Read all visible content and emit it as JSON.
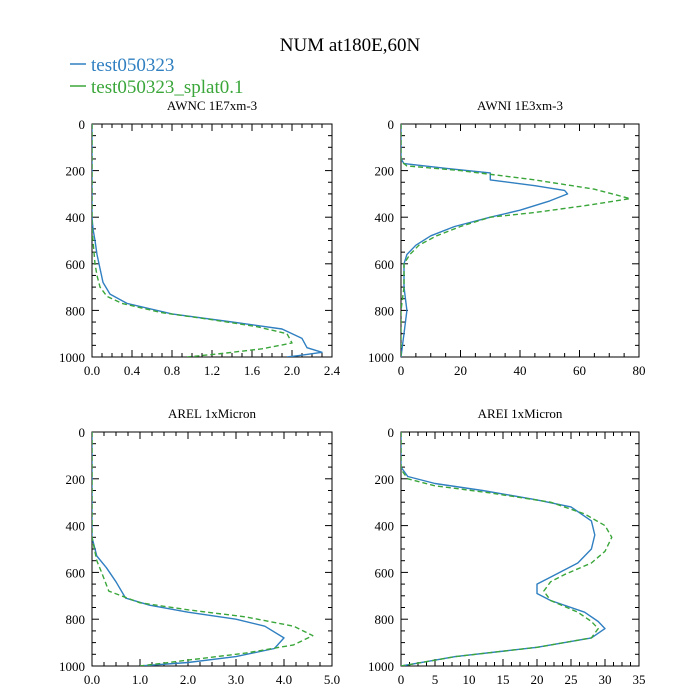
{
  "title": "NUM at180E,60N",
  "legend": [
    {
      "label": "test050323",
      "color": "#2f7fc1",
      "dash": "solid"
    },
    {
      "label": "test050323_splat0.1",
      "color": "#3aa63a",
      "dash": "dashed"
    }
  ],
  "chart_data": [
    {
      "type": "line",
      "title": "AWNC  1E7xm-3",
      "xlim": [
        0,
        2.4
      ],
      "ylim": [
        1000,
        0
      ],
      "xticks": [
        0,
        0.4,
        0.8,
        1.2,
        1.6,
        2.0,
        2.4
      ],
      "xticklabels": [
        "0.0",
        "0.4",
        "0.8",
        "1.2",
        "1.6",
        "2.0",
        "2.4"
      ],
      "yticks": [
        0,
        200,
        400,
        600,
        800,
        1000
      ],
      "yticklabels": [
        "0",
        "200",
        "400",
        "600",
        "800",
        "1000"
      ],
      "series": [
        {
          "name": "test050323",
          "points": [
            [
              0,
              0
            ],
            [
              0,
              400
            ],
            [
              0.01,
              450
            ],
            [
              0.03,
              500
            ],
            [
              0.05,
              560
            ],
            [
              0.08,
              620
            ],
            [
              0.11,
              680
            ],
            [
              0.18,
              730
            ],
            [
              0.35,
              770
            ],
            [
              0.8,
              815
            ],
            [
              1.4,
              850
            ],
            [
              1.9,
              880
            ],
            [
              2.1,
              920
            ],
            [
              2.15,
              960
            ],
            [
              2.3,
              980
            ],
            [
              2.05,
              995
            ],
            [
              1.95,
              1000
            ]
          ]
        },
        {
          "name": "test050323_splat0.1",
          "points": [
            [
              0,
              0
            ],
            [
              0,
              450
            ],
            [
              0.01,
              500
            ],
            [
              0.02,
              550
            ],
            [
              0.03,
              600
            ],
            [
              0.05,
              650
            ],
            [
              0.08,
              700
            ],
            [
              0.15,
              740
            ],
            [
              0.3,
              770
            ],
            [
              0.7,
              810
            ],
            [
              1.2,
              840
            ],
            [
              1.65,
              870
            ],
            [
              1.95,
              900
            ],
            [
              2.0,
              940
            ],
            [
              1.7,
              965
            ],
            [
              1.3,
              985
            ],
            [
              0.95,
              1000
            ]
          ]
        }
      ]
    },
    {
      "type": "line",
      "title": "AWNI  1E3xm-3",
      "xlim": [
        0,
        80
      ],
      "ylim": [
        1000,
        0
      ],
      "xticks": [
        0,
        20,
        40,
        60,
        80
      ],
      "xticklabels": [
        "0",
        "20",
        "40",
        "60",
        "80"
      ],
      "yticks": [
        0,
        200,
        400,
        600,
        800,
        1000
      ],
      "yticklabels": [
        "0",
        "200",
        "400",
        "600",
        "800",
        "1000"
      ],
      "series": [
        {
          "name": "test050323",
          "points": [
            [
              0,
              0
            ],
            [
              0,
              150
            ],
            [
              1,
              170
            ],
            [
              15,
              190
            ],
            [
              30,
              210
            ],
            [
              30,
              240
            ],
            [
              45,
              265
            ],
            [
              55,
              285
            ],
            [
              56,
              300
            ],
            [
              50,
              330
            ],
            [
              40,
              370
            ],
            [
              30,
              400
            ],
            [
              18,
              440
            ],
            [
              10,
              480
            ],
            [
              5,
              520
            ],
            [
              2,
              560
            ],
            [
              1,
              600
            ],
            [
              1,
              700
            ],
            [
              2,
              800
            ],
            [
              1,
              900
            ],
            [
              0,
              1000
            ]
          ]
        },
        {
          "name": "test050323_splat0.1",
          "points": [
            [
              0,
              0
            ],
            [
              0,
              160
            ],
            [
              2,
              180
            ],
            [
              20,
              200
            ],
            [
              45,
              240
            ],
            [
              65,
              280
            ],
            [
              77,
              320
            ],
            [
              62,
              350
            ],
            [
              45,
              380
            ],
            [
              30,
              400
            ],
            [
              20,
              440
            ],
            [
              12,
              480
            ],
            [
              6,
              520
            ],
            [
              3,
              560
            ],
            [
              1,
              600
            ],
            [
              1,
              700
            ],
            [
              0,
              800
            ],
            [
              0,
              900
            ],
            [
              0,
              1000
            ]
          ]
        }
      ]
    },
    {
      "type": "line",
      "title": "AREL  1xMicron",
      "xlim": [
        0,
        5.0
      ],
      "ylim": [
        1000,
        0
      ],
      "xticks": [
        0,
        1,
        2,
        3,
        4,
        5
      ],
      "xticklabels": [
        "0.0",
        "1.0",
        "2.0",
        "3.0",
        "4.0",
        "5.0"
      ],
      "yticks": [
        0,
        200,
        400,
        600,
        800,
        1000
      ],
      "yticklabels": [
        "0",
        "200",
        "400",
        "600",
        "800",
        "1000"
      ],
      "series": [
        {
          "name": "test050323",
          "points": [
            [
              0,
              0
            ],
            [
              0,
              450
            ],
            [
              0.1,
              530
            ],
            [
              0.3,
              580
            ],
            [
              0.5,
              640
            ],
            [
              0.7,
              710
            ],
            [
              1.2,
              740
            ],
            [
              2.0,
              770
            ],
            [
              3.0,
              800
            ],
            [
              3.6,
              830
            ],
            [
              4.0,
              880
            ],
            [
              3.8,
              925
            ],
            [
              3.0,
              960
            ],
            [
              2.0,
              985
            ],
            [
              1.0,
              1000
            ]
          ]
        },
        {
          "name": "test050323_splat0.1",
          "points": [
            [
              0,
              0
            ],
            [
              0,
              450
            ],
            [
              0.05,
              500
            ],
            [
              0.1,
              550
            ],
            [
              0.2,
              600
            ],
            [
              0.35,
              680
            ],
            [
              1.0,
              730
            ],
            [
              2.0,
              760
            ],
            [
              3.2,
              790
            ],
            [
              4.2,
              830
            ],
            [
              4.6,
              870
            ],
            [
              4.2,
              910
            ],
            [
              3.2,
              945
            ],
            [
              2.0,
              975
            ],
            [
              1.0,
              1000
            ]
          ]
        }
      ]
    },
    {
      "type": "line",
      "title": "AREI  1xMicron",
      "xlim": [
        0,
        35
      ],
      "ylim": [
        1000,
        0
      ],
      "xticks": [
        0,
        5,
        10,
        15,
        20,
        25,
        30,
        35
      ],
      "xticklabels": [
        "0",
        "5",
        "10",
        "15",
        "20",
        "25",
        "30",
        "35"
      ],
      "yticks": [
        0,
        200,
        400,
        600,
        800,
        1000
      ],
      "yticklabels": [
        "0",
        "200",
        "400",
        "600",
        "800",
        "1000"
      ],
      "series": [
        {
          "name": "test050323",
          "points": [
            [
              0,
              0
            ],
            [
              0,
              150
            ],
            [
              1,
              190
            ],
            [
              5,
              220
            ],
            [
              12,
              250
            ],
            [
              20,
              290
            ],
            [
              25,
              320
            ],
            [
              28,
              380
            ],
            [
              28.5,
              440
            ],
            [
              28,
              500
            ],
            [
              26,
              560
            ],
            [
              22,
              620
            ],
            [
              20,
              650
            ],
            [
              20,
              690
            ],
            [
              22,
              720
            ],
            [
              27,
              770
            ],
            [
              29,
              810
            ],
            [
              30,
              840
            ],
            [
              28,
              880
            ],
            [
              20,
              920
            ],
            [
              8,
              960
            ],
            [
              2,
              990
            ],
            [
              0,
              1000
            ]
          ]
        },
        {
          "name": "test050323_splat0.1",
          "points": [
            [
              0,
              0
            ],
            [
              0,
              160
            ],
            [
              1,
              200
            ],
            [
              5,
              230
            ],
            [
              13,
              260
            ],
            [
              22,
              300
            ],
            [
              27,
              350
            ],
            [
              30,
              400
            ],
            [
              31,
              450
            ],
            [
              30,
              510
            ],
            [
              28,
              560
            ],
            [
              24,
              610
            ],
            [
              22,
              640
            ],
            [
              21,
              680
            ],
            [
              22,
              720
            ],
            [
              26,
              770
            ],
            [
              28,
              810
            ],
            [
              29,
              840
            ],
            [
              28,
              880
            ],
            [
              20,
              920
            ],
            [
              8,
              960
            ],
            [
              2,
              990
            ],
            [
              0,
              1000
            ]
          ]
        }
      ]
    }
  ]
}
